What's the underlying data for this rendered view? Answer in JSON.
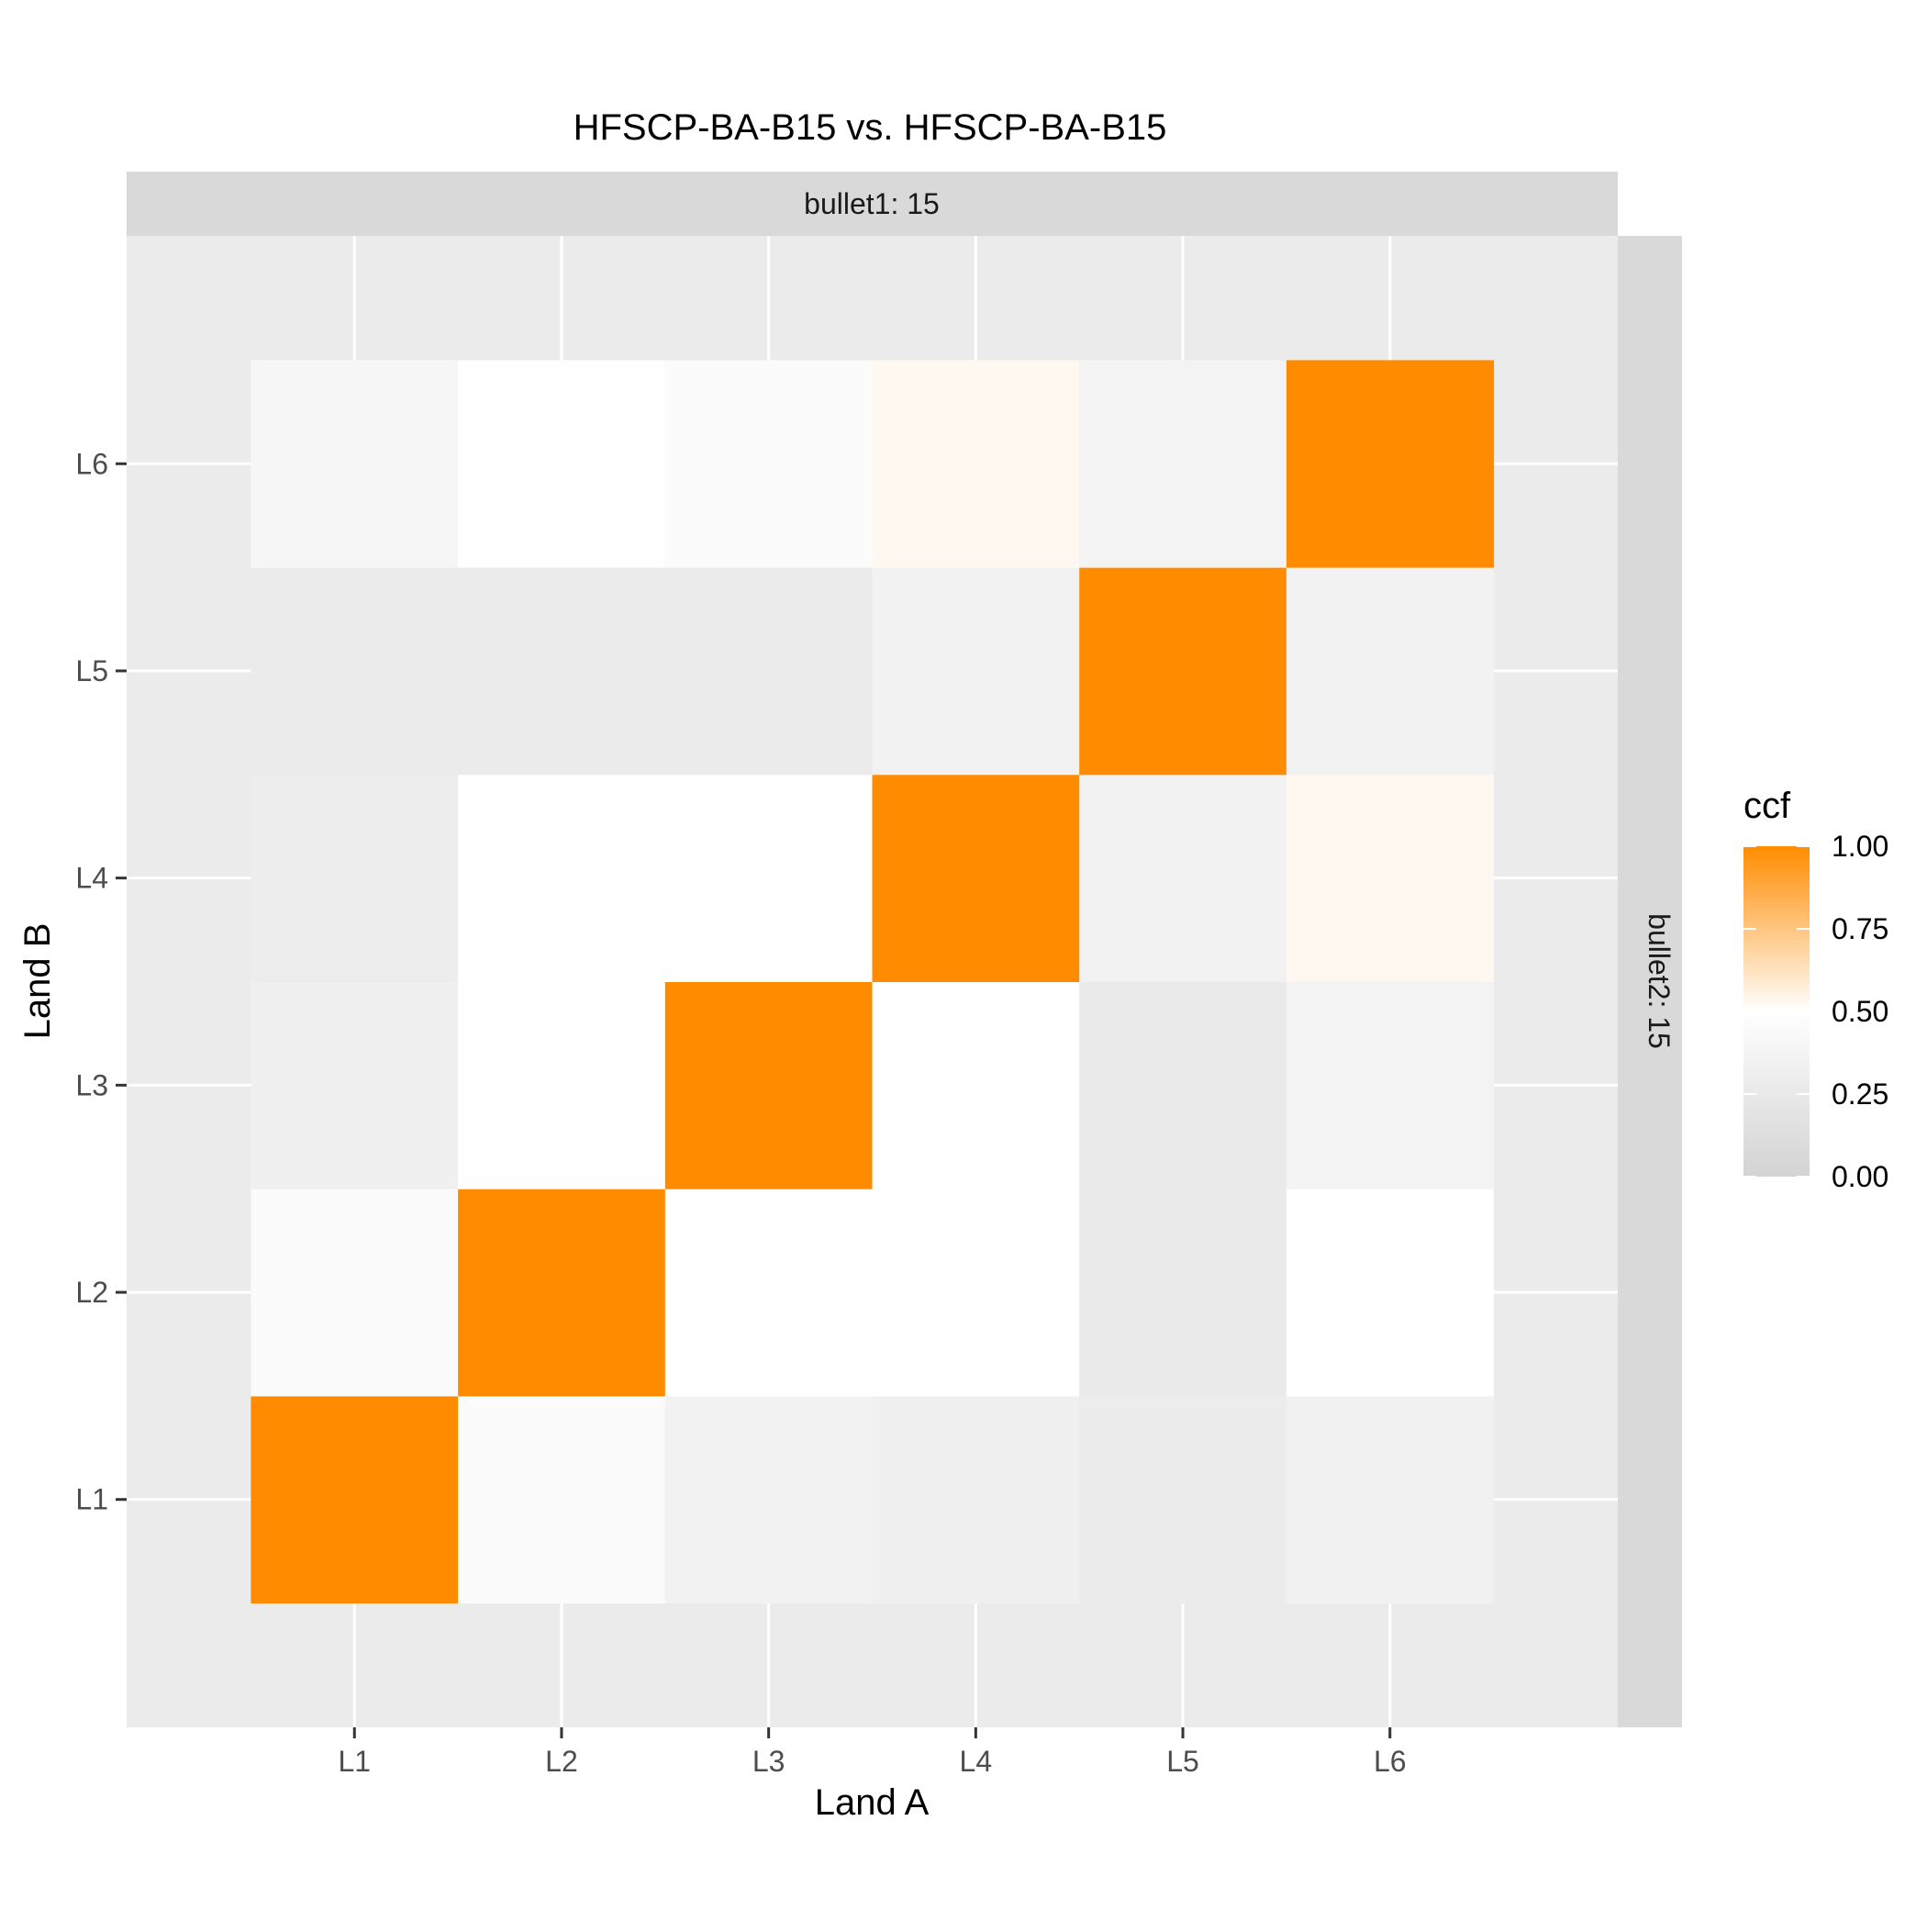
{
  "chart_data": {
    "type": "heatmap",
    "title": "HFSCP-BA-B15 vs. HFSCP-BA-B15",
    "facet_top": "bullet1: 15",
    "facet_right": "bullet2: 15",
    "xlabel": "Land A",
    "ylabel": "Land B",
    "x_categories": [
      "L1",
      "L2",
      "L3",
      "L4",
      "L5",
      "L6"
    ],
    "y_categories": [
      "L1",
      "L2",
      "L3",
      "L4",
      "L5",
      "L6"
    ],
    "values": [
      [
        1.0,
        0.46,
        0.35,
        0.33,
        0.28,
        0.34
      ],
      [
        0.46,
        1.0,
        0.49,
        0.5,
        0.26,
        0.5
      ],
      [
        0.33,
        0.49,
        1.0,
        0.5,
        0.26,
        0.36
      ],
      [
        0.3,
        0.5,
        0.5,
        1.0,
        0.35,
        0.53
      ],
      [
        0.27,
        0.27,
        0.27,
        0.35,
        1.0,
        0.35
      ],
      [
        0.4,
        0.49,
        0.45,
        0.53,
        0.36,
        1.0
      ]
    ],
    "legend": {
      "title": "ccf",
      "ticks": [
        1.0,
        0.75,
        0.5,
        0.25,
        0.0
      ],
      "tick_labels": [
        "1.00",
        "0.75",
        "0.50",
        "0.25",
        "0.00"
      ],
      "placement": "right"
    },
    "color_scale": {
      "low": "#d3d3d3",
      "mid": "#ffffff",
      "high": "#ff8c00",
      "midpoint": 0.5,
      "limits": [
        0,
        1
      ]
    },
    "grid": true,
    "panel_background": "#ebebeb",
    "strip_background": "#d9d9d9"
  }
}
